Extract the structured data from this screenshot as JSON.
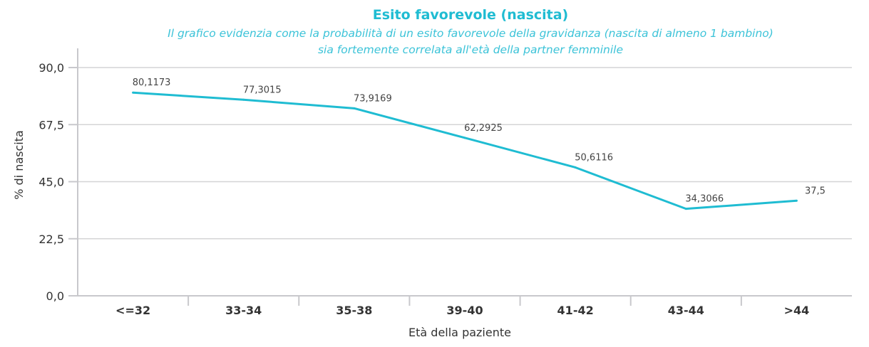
{
  "chart_data": {
    "type": "line",
    "title": "Esito favorevole (nascita)",
    "subtitle": [
      "Il grafico evidenzia come la probabilità di un esito favorevole della gravidanza (nascita di almeno 1 bambino)",
      "sia fortemente correlata all'età della partner femminile"
    ],
    "xlabel": "Età della paziente",
    "ylabel": "% di nascita",
    "ylim": [
      0,
      90
    ],
    "yticks": [
      "0,0",
      "22,5",
      "45,0",
      "67,5",
      "90,0"
    ],
    "ytick_values": [
      0,
      22.5,
      45,
      67.5,
      90
    ],
    "grid": true,
    "categories": [
      "<=32",
      "33-34",
      "35-38",
      "39-40",
      "41-42",
      "43-44",
      ">44"
    ],
    "series": [
      {
        "name": "% di nascita",
        "color": "#1fbcd2",
        "values": [
          80.1173,
          77.3015,
          73.9169,
          62.2925,
          50.6116,
          34.3066,
          37.5
        ],
        "labels": [
          "80,1173",
          "77,3015",
          "73,9169",
          "62,2925",
          "50,6116",
          "34,3066",
          "37,5"
        ]
      }
    ]
  }
}
